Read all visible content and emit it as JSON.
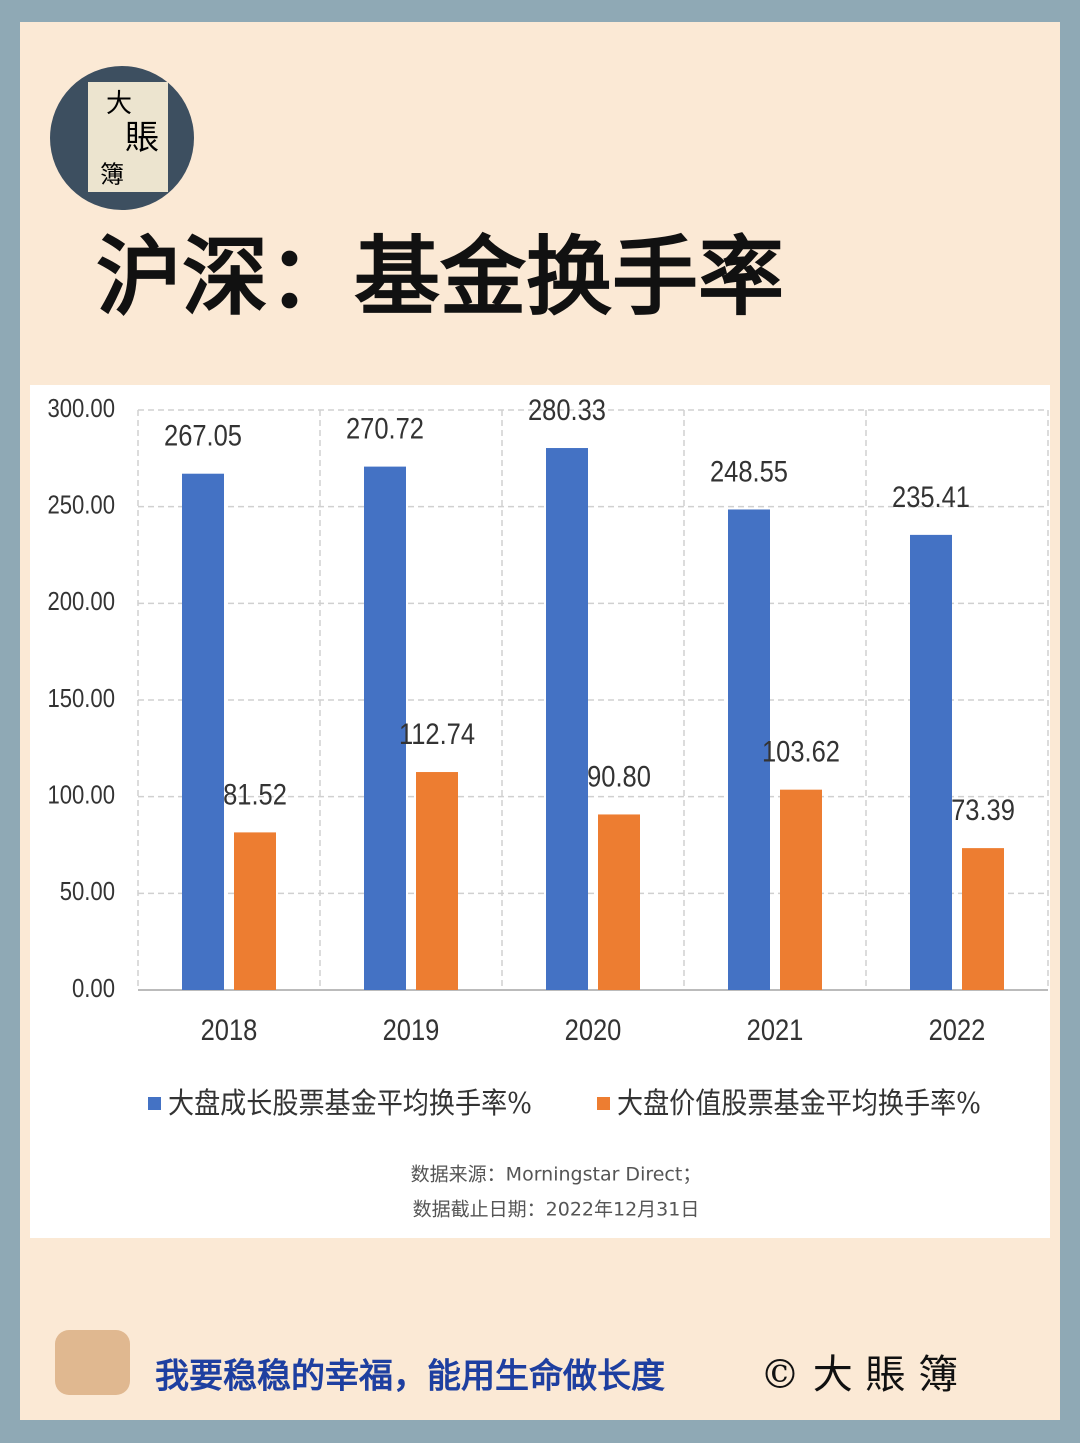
{
  "logo": [
    "大",
    "賬",
    "簿"
  ],
  "chart_data": {
    "type": "bar",
    "title": "沪深：基金换手率",
    "categories": [
      "2018",
      "2019",
      "2020",
      "2021",
      "2022"
    ],
    "series": [
      {
        "name": "大盘成长股票基金平均换手率%",
        "color": "#4472c4",
        "values": [
          267.05,
          270.72,
          280.33,
          248.55,
          235.41
        ],
        "value_labels": [
          "267.05",
          "270.72",
          "280.33",
          "248.55",
          "235.41"
        ]
      },
      {
        "name": "大盘价值股票基金平均换手率%",
        "color": "#ed7d31",
        "values": [
          81.52,
          112.74,
          90.8,
          103.62,
          73.39
        ],
        "value_labels": [
          "81.52",
          "112.74",
          "90.80",
          "103.62",
          "73.39"
        ]
      }
    ],
    "ylim": [
      0,
      300
    ],
    "yticks": [
      {
        "value": 0,
        "label": "0.00"
      },
      {
        "value": 50,
        "label": "50.00"
      },
      {
        "value": 100,
        "label": "100.00"
      },
      {
        "value": 150,
        "label": "150.00"
      },
      {
        "value": 200,
        "label": "200.00"
      },
      {
        "value": 250,
        "label": "250.00"
      },
      {
        "value": 300,
        "label": "300.00"
      }
    ],
    "grid": true,
    "source": [
      "数据来源：Morningstar Direct；",
      "数据截止日期：2022年12月31日"
    ]
  },
  "footer": {
    "slogan": "我要稳稳的幸福，能用生命做长度",
    "brand": "© 大 賬 簿"
  }
}
